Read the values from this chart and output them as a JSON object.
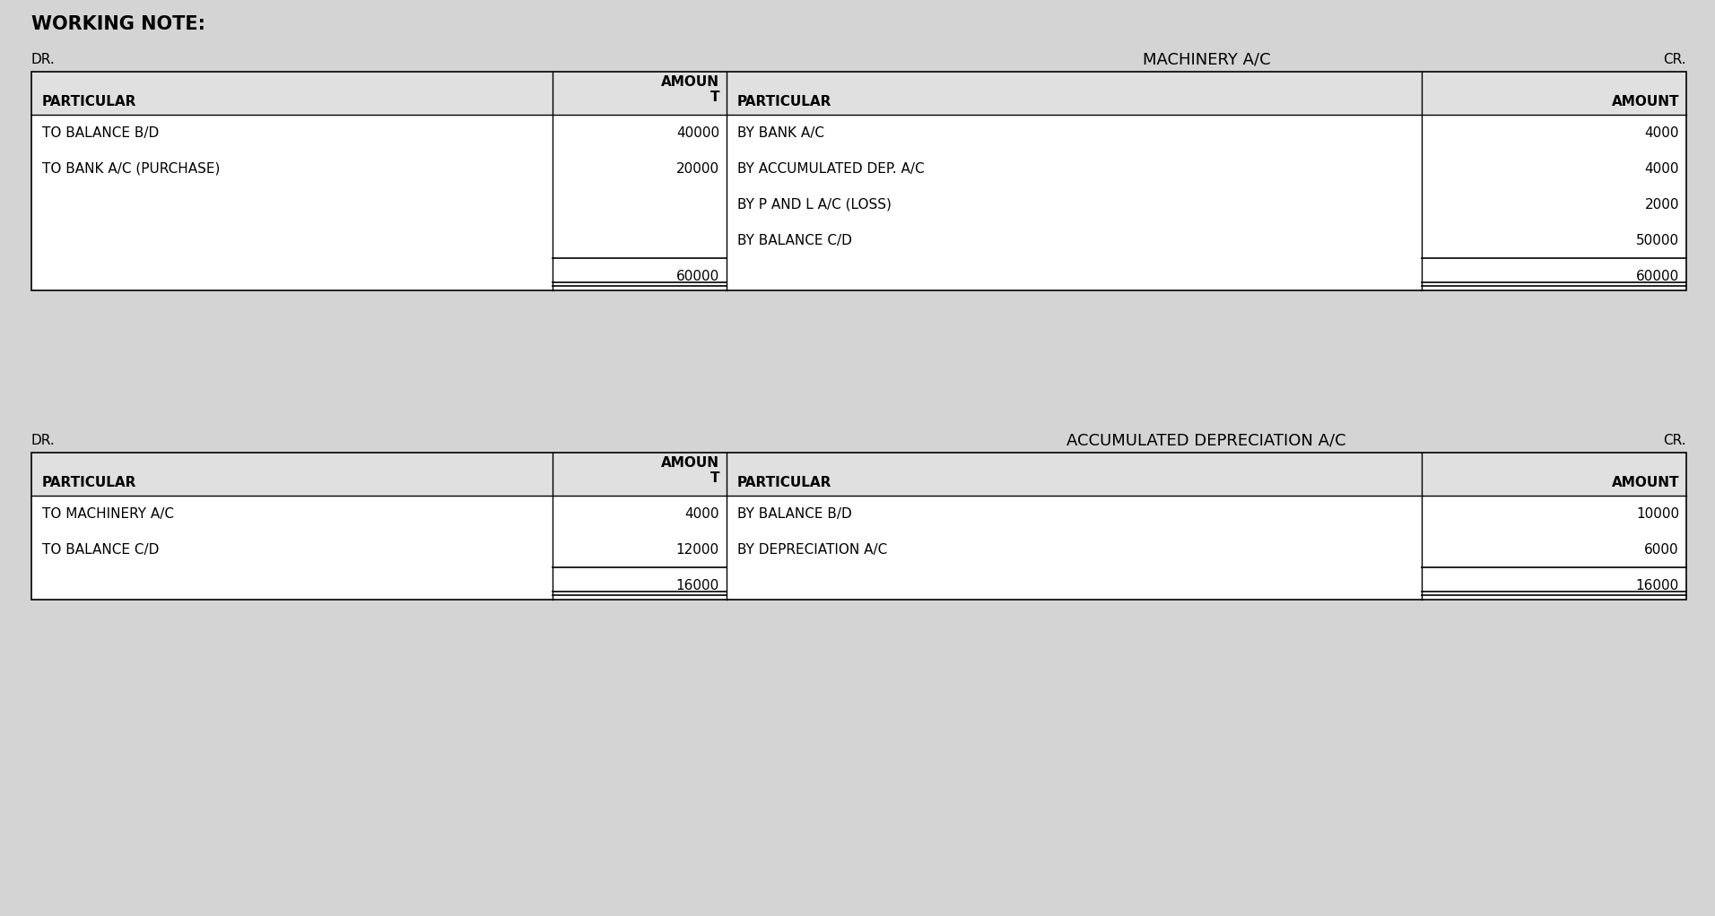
{
  "background_color": "#d4d4d4",
  "working_note_title": "WORKING NOTE:",
  "table1": {
    "title": "MACHINERY A/C",
    "dr_label": "DR.",
    "cr_label": "CR.",
    "rows_left": [
      [
        "TO BALANCE B/D",
        "40000"
      ],
      [
        "TO BANK A/C (PURCHASE)",
        "20000"
      ],
      [
        "",
        ""
      ],
      [
        "",
        ""
      ],
      [
        "",
        "60000"
      ]
    ],
    "rows_right": [
      [
        "BY BANK A/C",
        "4000"
      ],
      [
        "BY ACCUMULATED DEP. A/C",
        "4000"
      ],
      [
        "BY P AND L A/C (LOSS)",
        "2000"
      ],
      [
        "BY BALANCE C/D",
        "50000"
      ],
      [
        "",
        "60000"
      ]
    ]
  },
  "table2": {
    "title": "ACCUMULATED DEPRECIATION A/C",
    "dr_label": "DR.",
    "cr_label": "CR.",
    "rows_left": [
      [
        "TO MACHINERY A/C",
        "4000"
      ],
      [
        "TO BALANCE C/D",
        "12000"
      ],
      [
        "",
        "16000"
      ]
    ],
    "rows_right": [
      [
        "BY BALANCE B/D",
        "10000"
      ],
      [
        "BY DEPRECIATION A/C",
        "6000"
      ],
      [
        "",
        "16000"
      ]
    ]
  },
  "font_size_title": 13,
  "font_size_header": 11,
  "font_size_body": 11,
  "font_size_label": 11,
  "font_size_working_note": 15
}
